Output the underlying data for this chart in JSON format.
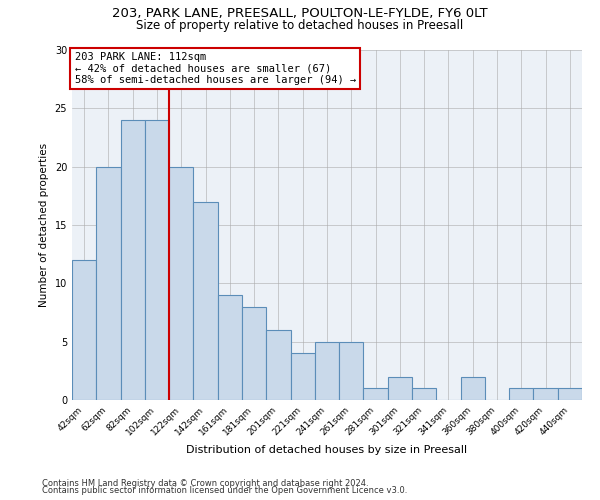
{
  "title1": "203, PARK LANE, PREESALL, POULTON-LE-FYLDE, FY6 0LT",
  "title2": "Size of property relative to detached houses in Preesall",
  "xlabel": "Distribution of detached houses by size in Preesall",
  "ylabel": "Number of detached properties",
  "categories": [
    "42sqm",
    "62sqm",
    "82sqm",
    "102sqm",
    "122sqm",
    "142sqm",
    "161sqm",
    "181sqm",
    "201sqm",
    "221sqm",
    "241sqm",
    "261sqm",
    "281sqm",
    "301sqm",
    "321sqm",
    "341sqm",
    "360sqm",
    "380sqm",
    "400sqm",
    "420sqm",
    "440sqm"
  ],
  "values": [
    12,
    20,
    24,
    24,
    20,
    17,
    9,
    8,
    6,
    4,
    5,
    5,
    1,
    2,
    1,
    0,
    2,
    0,
    1,
    1,
    1
  ],
  "bar_color": "#c9d9ea",
  "bar_edge_color": "#5b8db8",
  "bar_edge_width": 0.8,
  "vline_color": "#cc0000",
  "annotation_line1": "203 PARK LANE: 112sqm",
  "annotation_line2": "← 42% of detached houses are smaller (67)",
  "annotation_line3": "58% of semi-detached houses are larger (94) →",
  "annotation_box_color": "#ffffff",
  "annotation_box_edge": "#cc0000",
  "ylim": [
    0,
    30
  ],
  "yticks": [
    0,
    5,
    10,
    15,
    20,
    25,
    30
  ],
  "bg_color": "#ecf1f7",
  "footnote1": "Contains HM Land Registry data © Crown copyright and database right 2024.",
  "footnote2": "Contains public sector information licensed under the Open Government Licence v3.0."
}
